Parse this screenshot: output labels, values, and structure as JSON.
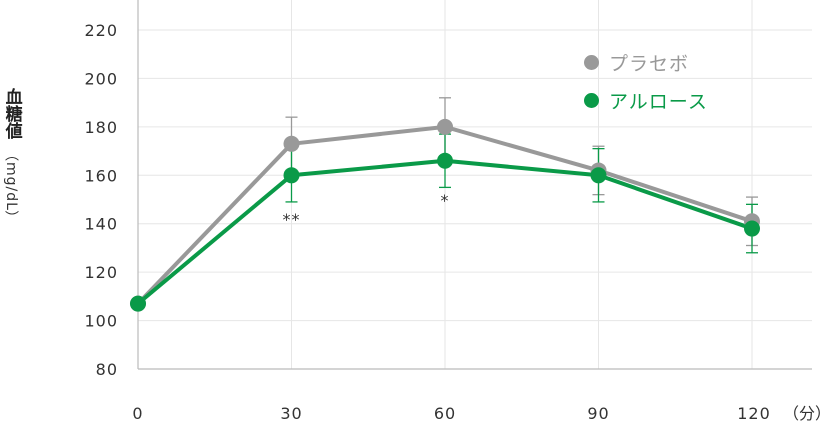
{
  "chart_data": {
    "type": "line",
    "xlabel": "（分）",
    "ylabel": "血糖値",
    "ylabel_unit": "（mg/dL）",
    "x": [
      0,
      30,
      60,
      90,
      120
    ],
    "x_tick_labels": [
      "0",
      "30",
      "60",
      "90",
      "120"
    ],
    "y_ticks": [
      80,
      100,
      120,
      140,
      160,
      180,
      200,
      220
    ],
    "ylim": [
      80,
      220
    ],
    "xlim": [
      0,
      120
    ],
    "grid": "vertical-and-horizontal",
    "legend_position": "top-right",
    "series": [
      {
        "name": "プラセボ",
        "color": "#999999",
        "values": [
          107,
          173,
          180,
          162,
          141
        ],
        "error": [
          0,
          11,
          12,
          10,
          10
        ]
      },
      {
        "name": "アルロース",
        "color": "#0a9a48",
        "values": [
          107,
          160,
          166,
          160,
          138
        ],
        "error": [
          0,
          11,
          11,
          11,
          10
        ]
      }
    ],
    "annotations": [
      {
        "x": 30,
        "text": "**"
      },
      {
        "x": 60,
        "text": "*"
      }
    ]
  }
}
